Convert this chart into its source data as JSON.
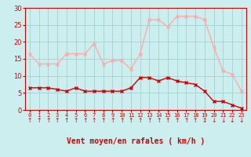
{
  "x": [
    0,
    1,
    2,
    3,
    4,
    5,
    6,
    7,
    8,
    9,
    10,
    11,
    12,
    13,
    14,
    15,
    16,
    17,
    18,
    19,
    20,
    21,
    22,
    23
  ],
  "wind_avg": [
    6.5,
    6.5,
    6.5,
    6.0,
    5.5,
    6.5,
    5.5,
    5.5,
    5.5,
    5.5,
    5.5,
    6.5,
    9.5,
    9.5,
    8.5,
    9.5,
    8.5,
    8.0,
    7.5,
    5.5,
    2.5,
    2.5,
    1.5,
    0.5
  ],
  "wind_gust": [
    16.5,
    13.5,
    13.5,
    13.5,
    16.5,
    16.5,
    16.5,
    19.5,
    13.5,
    14.5,
    14.5,
    12.0,
    16.5,
    26.5,
    26.5,
    24.5,
    27.5,
    27.5,
    27.5,
    26.5,
    18.5,
    11.5,
    10.5,
    5.5
  ],
  "avg_color": "#cc0000",
  "gust_color": "#ffaaaa",
  "bg_color": "#cceeee",
  "grid_color": "#99cccc",
  "xlabel": "Vent moyen/en rafales ( km/h )",
  "xlabel_color": "#cc0000",
  "tick_color": "#cc0000",
  "ylim": [
    0,
    30
  ],
  "yticks": [
    0,
    5,
    10,
    15,
    20,
    25,
    30
  ],
  "arrows_up": [
    0,
    1,
    2,
    3,
    4,
    5,
    6,
    7,
    8,
    9,
    10,
    11,
    12,
    13,
    14,
    15,
    16,
    17,
    18,
    19
  ],
  "arrows_mixed": [
    19
  ],
  "arrows_down": [
    20,
    21,
    22,
    23
  ]
}
